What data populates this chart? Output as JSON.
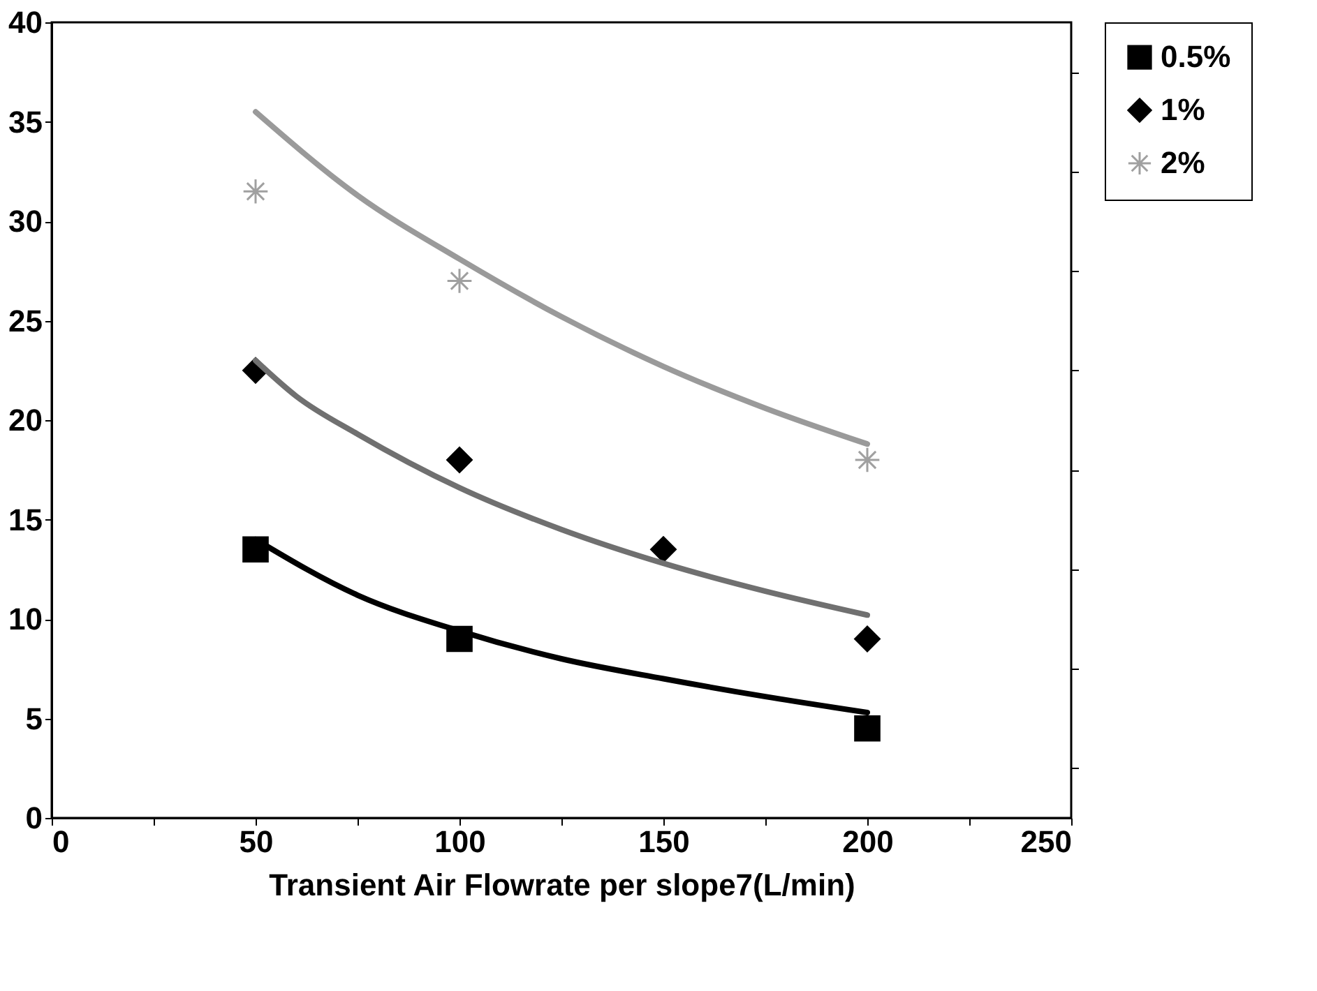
{
  "chart_data": {
    "type": "scatter",
    "xlabel": "Transient Air Flowrate per slope7(L/min)",
    "xlim": [
      0,
      250
    ],
    "ylim": [
      0,
      40
    ],
    "xticks": [
      0,
      {
        "value": 25,
        "label": null
      },
      50,
      {
        "value": 75,
        "label": null
      },
      100,
      {
        "value": 125,
        "label": null
      },
      150,
      {
        "value": 175,
        "label": null
      },
      200,
      {
        "value": 225,
        "label": null
      },
      250
    ],
    "yticks": [
      0,
      {
        "value": 2.5,
        "label": null
      },
      5,
      {
        "value": 7.5,
        "label": null
      },
      10,
      {
        "value": 12.5,
        "label": null
      },
      15,
      {
        "value": 17.5,
        "label": null
      },
      20,
      {
        "value": 22.5,
        "label": null
      },
      25,
      {
        "value": 27.5,
        "label": null
      },
      30,
      {
        "value": 32.5,
        "label": null
      },
      35,
      {
        "value": 37.5,
        "label": null
      },
      40
    ],
    "grid": false,
    "legend": "top right",
    "series": [
      {
        "name": "0.5%",
        "marker": "square",
        "color": "#000000",
        "x": [
          50,
          100,
          200
        ],
        "values": [
          13.5,
          9,
          4.5
        ]
      },
      {
        "name": "1%",
        "marker": "diamond",
        "color": "#000000",
        "x": [
          50,
          100,
          150,
          200
        ],
        "values": [
          22.5,
          18,
          13.5,
          9
        ]
      },
      {
        "name": "2%",
        "marker": "cross",
        "color": "#a0a0a0",
        "x": [
          50,
          100,
          200
        ],
        "values": [
          31.5,
          27,
          18
        ]
      },
      {
        "type": "line",
        "color": "#000000",
        "x": [
          50,
          75,
          100,
          125,
          150,
          175,
          200
        ],
        "values": [
          14,
          11.2,
          9.4,
          8.0,
          7.0,
          6.1,
          5.3
        ]
      },
      {
        "type": "line",
        "color": "#707070",
        "x": [
          50,
          60,
          75,
          100,
          125,
          150,
          175,
          200
        ],
        "values": [
          23,
          21.2,
          19.3,
          16.6,
          14.5,
          12.8,
          11.4,
          10.2
        ]
      },
      {
        "type": "line",
        "color": "#9a9a9a",
        "x": [
          50,
          75,
          100,
          125,
          150,
          175,
          200
        ],
        "values": [
          35.5,
          31.3,
          28.1,
          25.2,
          22.7,
          20.6,
          18.8
        ]
      }
    ]
  }
}
